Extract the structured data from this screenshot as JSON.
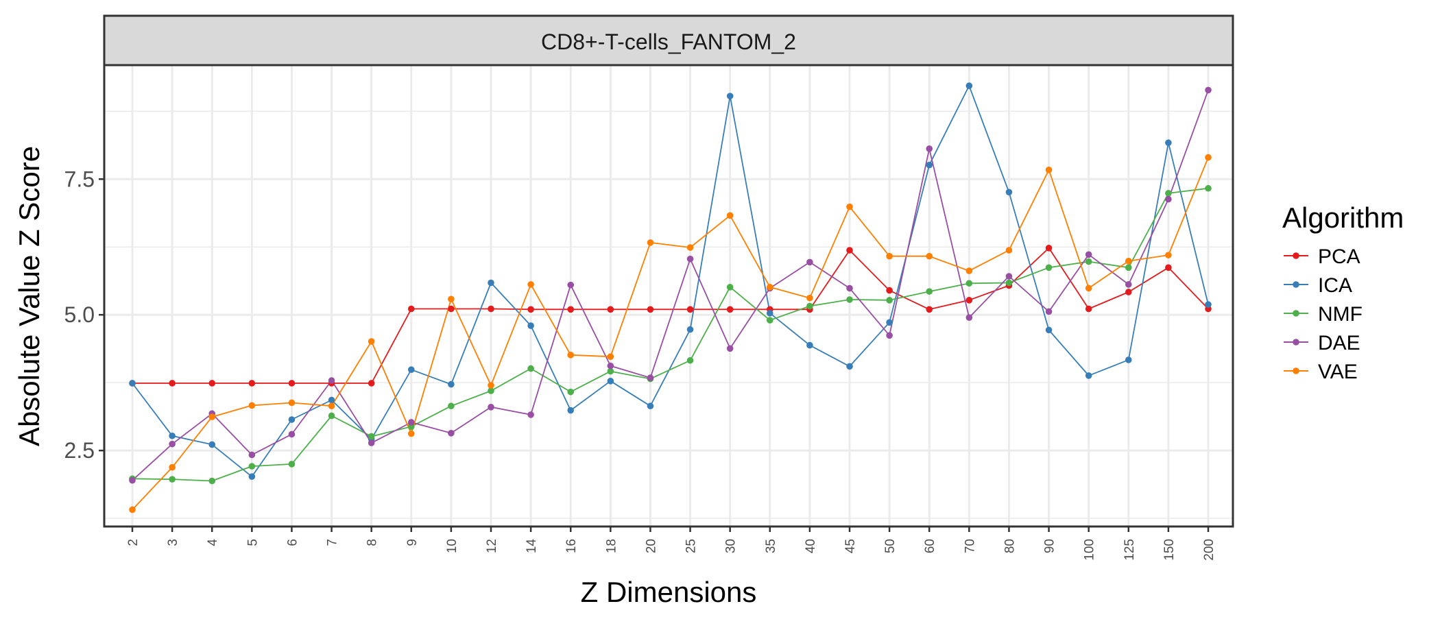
{
  "chart_data": {
    "type": "line",
    "title": "CD8+-T-cells_FANTOM_2",
    "xlabel": "Z Dimensions",
    "ylabel": "Absolute Value Z Score",
    "categories": [
      "2",
      "3",
      "4",
      "5",
      "6",
      "7",
      "8",
      "9",
      "10",
      "12",
      "14",
      "16",
      "18",
      "20",
      "25",
      "30",
      "35",
      "40",
      "45",
      "50",
      "60",
      "70",
      "80",
      "90",
      "100",
      "125",
      "150",
      "200"
    ],
    "ylim": [
      1.1,
      9.6
    ],
    "yticks": [
      2.5,
      5.0,
      7.5
    ],
    "ytick_labels": [
      "2.5",
      "5.0",
      "7.5"
    ],
    "grid": true,
    "legend": {
      "title": "Algorithm",
      "position": "right"
    },
    "series": [
      {
        "name": "PCA",
        "color": "#e41a1c",
        "values": [
          3.74,
          3.74,
          3.74,
          3.74,
          3.74,
          3.74,
          3.74,
          5.11,
          5.11,
          5.11,
          5.1,
          5.1,
          5.1,
          5.1,
          5.1,
          5.1,
          5.1,
          5.1,
          6.19,
          5.45,
          5.1,
          5.27,
          5.54,
          6.23,
          5.11,
          5.42,
          5.87,
          5.11
        ]
      },
      {
        "name": "ICA",
        "color": "#377eb8",
        "values": [
          3.74,
          2.77,
          2.61,
          2.02,
          3.07,
          3.43,
          2.71,
          3.99,
          3.72,
          5.59,
          4.8,
          3.24,
          3.78,
          3.32,
          4.73,
          9.03,
          5.03,
          4.44,
          4.05,
          4.86,
          7.76,
          9.22,
          7.26,
          4.72,
          3.88,
          4.17,
          8.17,
          5.19
        ]
      },
      {
        "name": "NMF",
        "color": "#4daf4a",
        "values": [
          1.98,
          1.97,
          1.94,
          2.21,
          2.25,
          3.14,
          2.76,
          2.94,
          3.32,
          3.6,
          4.01,
          3.58,
          3.96,
          3.82,
          4.16,
          5.51,
          4.9,
          5.16,
          5.28,
          5.27,
          5.43,
          5.58,
          5.59,
          5.87,
          5.98,
          5.87,
          7.24,
          7.33
        ]
      },
      {
        "name": "DAE",
        "color": "#984ea3",
        "values": [
          1.95,
          2.62,
          3.18,
          2.42,
          2.8,
          3.79,
          2.64,
          3.02,
          2.82,
          3.3,
          3.16,
          5.55,
          4.06,
          3.84,
          6.03,
          4.38,
          5.49,
          5.97,
          5.49,
          4.62,
          8.06,
          4.95,
          5.71,
          5.06,
          6.11,
          5.56,
          7.13,
          9.14
        ]
      },
      {
        "name": "VAE",
        "color": "#ff7f00",
        "values": [
          1.41,
          2.19,
          3.12,
          3.33,
          3.38,
          3.32,
          4.51,
          2.81,
          5.29,
          3.7,
          5.56,
          4.26,
          4.23,
          6.33,
          6.24,
          6.83,
          5.51,
          5.31,
          6.99,
          6.08,
          6.08,
          5.81,
          6.19,
          7.67,
          5.49,
          5.99,
          6.1,
          7.9
        ]
      }
    ]
  }
}
